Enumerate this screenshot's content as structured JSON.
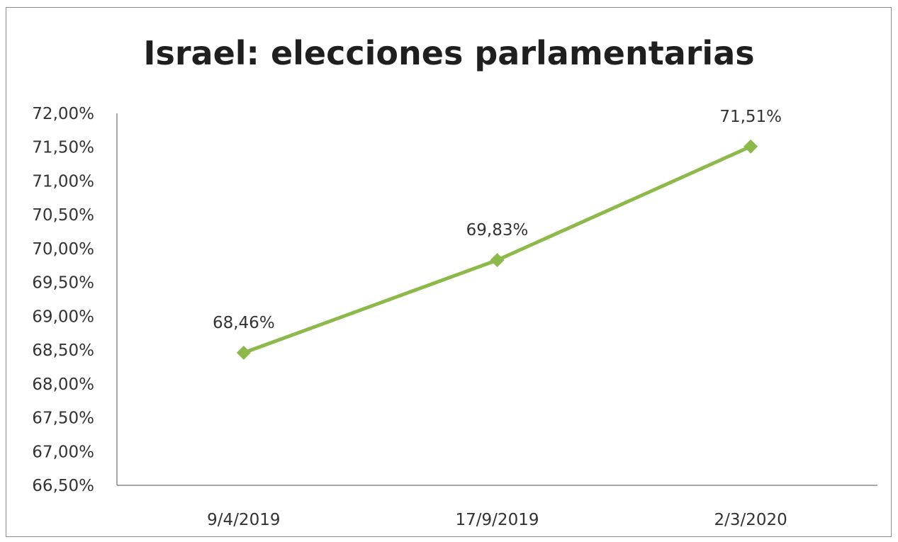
{
  "chart_data": {
    "type": "line",
    "title": "Israel: elecciones parlamentarias",
    "categories": [
      "9/4/2019",
      "17/9/2019",
      "2/3/2020"
    ],
    "series": [
      {
        "values": [
          68.46,
          69.83,
          71.51
        ],
        "labels": [
          "68,46%",
          "69,83%",
          "71,51%"
        ],
        "color": "#8db84a"
      }
    ],
    "ylim": [
      66.5,
      72.0
    ],
    "yticks": [
      "66,50%",
      "67,00%",
      "67,50%",
      "68,00%",
      "68,50%",
      "69,00%",
      "69,50%",
      "70,00%",
      "70,50%",
      "71,00%",
      "71,50%",
      "72,00%"
    ],
    "grid": false,
    "legend": "none"
  }
}
